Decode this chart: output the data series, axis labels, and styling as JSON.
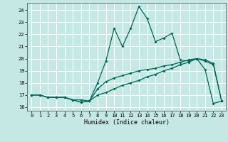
{
  "xlabel": "Humidex (Indice chaleur)",
  "background_color": "#c5e8e5",
  "grid_color": "#ffffff",
  "line_color": "#006655",
  "xlim": [
    -0.5,
    23.5
  ],
  "ylim": [
    15.7,
    24.6
  ],
  "xticks": [
    0,
    1,
    2,
    3,
    4,
    5,
    6,
    7,
    8,
    9,
    10,
    11,
    12,
    13,
    14,
    15,
    16,
    17,
    18,
    19,
    20,
    21,
    22,
    23
  ],
  "yticks": [
    16,
    17,
    18,
    19,
    20,
    21,
    22,
    23,
    24
  ],
  "line1_x": [
    0,
    1,
    2,
    3,
    4,
    5,
    6,
    7,
    8,
    9,
    10,
    11,
    12,
    13,
    14,
    15,
    16,
    17,
    18,
    19,
    20,
    21,
    22,
    23
  ],
  "line1_y": [
    17.0,
    17.0,
    16.8,
    16.8,
    16.8,
    16.6,
    16.4,
    16.5,
    18.0,
    19.8,
    22.5,
    21.0,
    22.5,
    24.3,
    23.3,
    21.4,
    21.7,
    22.1,
    19.9,
    19.8,
    20.0,
    19.1,
    16.3,
    16.5
  ],
  "line2_x": [
    0,
    1,
    2,
    3,
    4,
    5,
    6,
    7,
    8,
    9,
    10,
    11,
    12,
    13,
    14,
    15,
    16,
    17,
    18,
    19,
    20,
    21,
    22,
    23
  ],
  "line2_y": [
    17.0,
    17.0,
    16.8,
    16.8,
    16.8,
    16.6,
    16.6,
    16.5,
    17.5,
    18.1,
    18.4,
    18.6,
    18.8,
    19.0,
    19.1,
    19.2,
    19.4,
    19.5,
    19.7,
    19.9,
    20.0,
    19.8,
    19.5,
    16.5
  ],
  "line3_x": [
    0,
    1,
    2,
    3,
    4,
    5,
    6,
    7,
    8,
    9,
    10,
    11,
    12,
    13,
    14,
    15,
    16,
    17,
    18,
    19,
    20,
    21,
    22,
    23
  ],
  "line3_y": [
    17.0,
    17.0,
    16.8,
    16.8,
    16.8,
    16.6,
    16.4,
    16.5,
    17.0,
    17.2,
    17.5,
    17.8,
    18.0,
    18.2,
    18.5,
    18.7,
    19.0,
    19.2,
    19.5,
    19.7,
    20.0,
    19.9,
    19.6,
    16.5
  ]
}
